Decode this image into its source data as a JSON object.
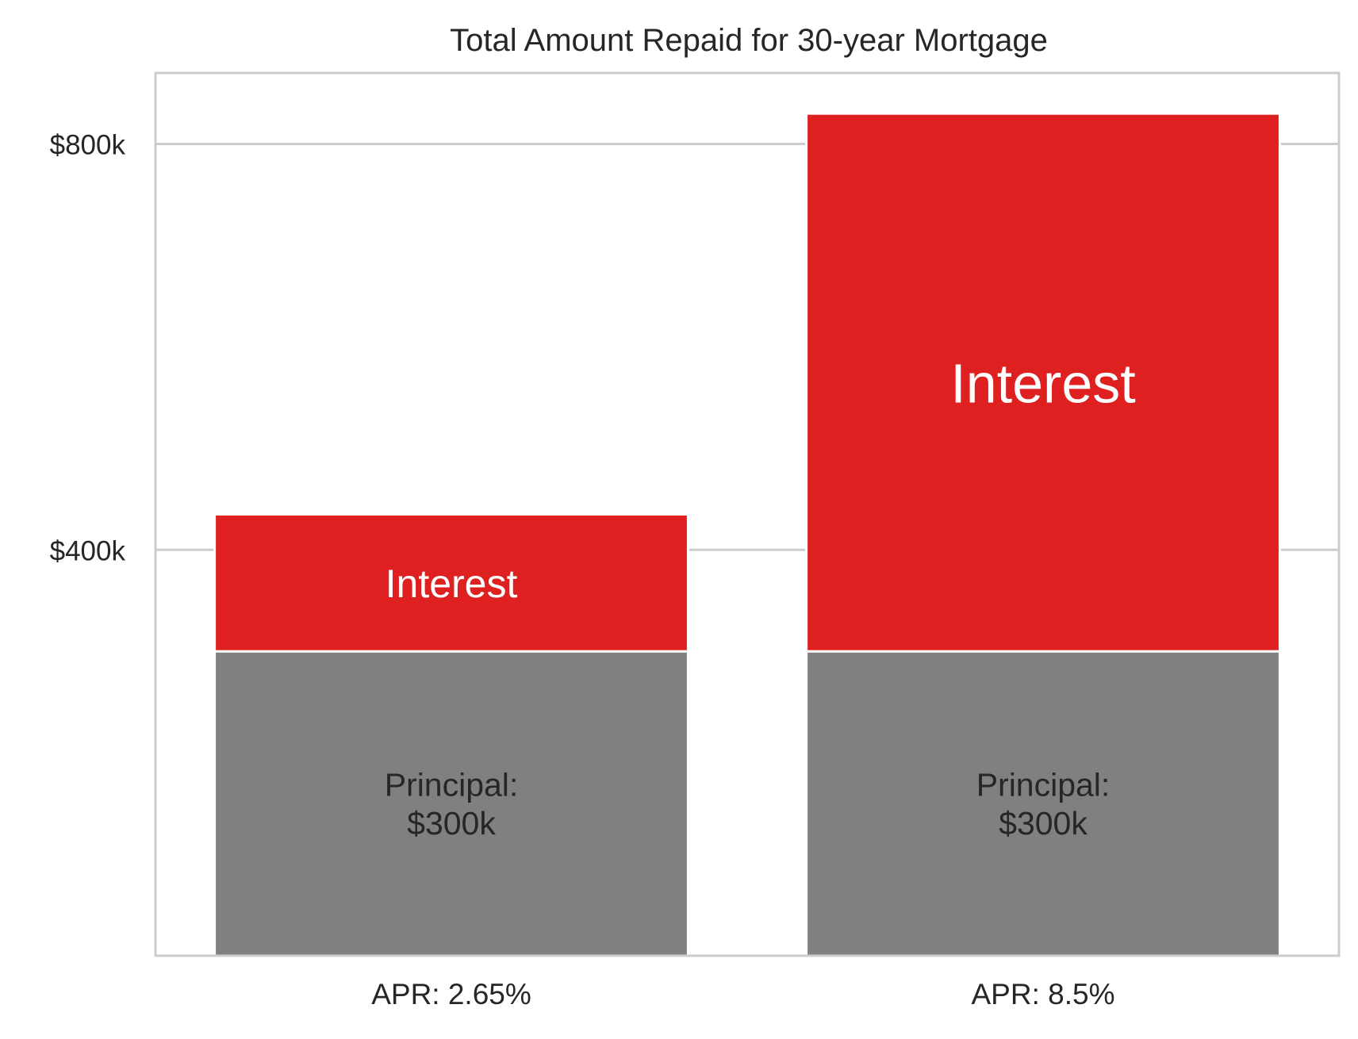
{
  "chart_data": {
    "type": "bar",
    "stacked": true,
    "title": "Total Amount Repaid for 30-year Mortgage",
    "xlabel": "",
    "ylabel": "",
    "categories": [
      "APR: 2.65%",
      "APR: 8.5%"
    ],
    "series": [
      {
        "key": "principal",
        "values": [
          300000,
          300000
        ],
        "labels": [
          "Principal:\n$300k",
          "Principal:\n$300k"
        ],
        "color": "#808080"
      },
      {
        "key": "interest",
        "values": [
          135000,
          530000
        ],
        "labels": [
          "Interest",
          "Interest"
        ],
        "color": "#de2020"
      }
    ],
    "ylim": [
      0,
      870000
    ],
    "yticks": [
      400000,
      800000
    ],
    "ytick_labels": [
      "$400k",
      "$800k"
    ],
    "grid": true,
    "legend": "none"
  }
}
